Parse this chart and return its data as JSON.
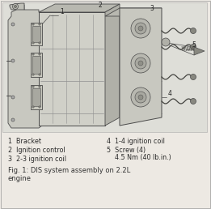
{
  "bg_color": "#ede9e3",
  "line_color": "#4a4a4a",
  "text_color": "#2a2a2a",
  "caption_color": "#333333",
  "fig_width": 2.61,
  "fig_height": 2.58,
  "dpi": 100,
  "legend_col1": [
    "1  Bracket",
    "2  Ignition control",
    "3  2-3 ignition coil"
  ],
  "legend_col2_line1": [
    "4  1-4 ignition coil",
    "5  Screw (4)"
  ],
  "legend_col2_line2": "    4.5 Nm (40 lb.in.)",
  "caption_line1": "Fig. 1: DIS system assembly on 2.2L",
  "caption_line2": "engine",
  "num_labels": [
    "1",
    "2",
    "3",
    "4",
    "5"
  ],
  "num_positions_x": [
    75,
    125,
    175,
    210,
    237
  ],
  "num_positions_y": [
    18,
    10,
    18,
    118,
    62
  ]
}
